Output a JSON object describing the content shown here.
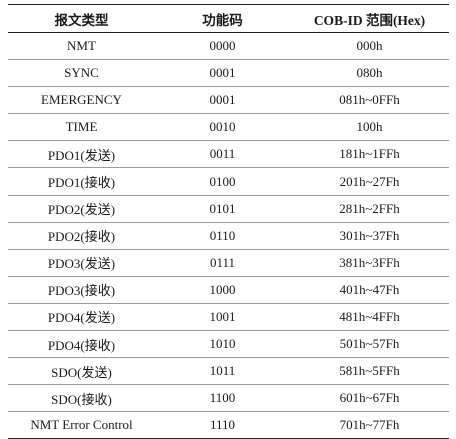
{
  "table": {
    "headers": [
      "报文类型",
      "功能码",
      "COB-ID 范围(Hex)"
    ],
    "rows": [
      [
        "NMT",
        "0000",
        "000h"
      ],
      [
        "SYNC",
        "0001",
        "080h"
      ],
      [
        "EMERGENCY",
        "0001",
        "081h~0FFh"
      ],
      [
        "TIME",
        "0010",
        "100h"
      ],
      [
        "PDO1(发送)",
        "0011",
        "181h~1FFh"
      ],
      [
        "PDO1(接收)",
        "0100",
        "201h~27Fh"
      ],
      [
        "PDO2(发送)",
        "0101",
        "281h~2FFh"
      ],
      [
        "PDO2(接收)",
        "0110",
        "301h~37Fh"
      ],
      [
        "PDO3(发送)",
        "0111",
        "381h~3FFh"
      ],
      [
        "PDO3(接收)",
        "1000",
        "401h~47Fh"
      ],
      [
        "PDO4(发送)",
        "1001",
        "481h~4FFh"
      ],
      [
        "PDO4(接收)",
        "1010",
        "501h~57Fh"
      ],
      [
        "SDO(发送)",
        "1011",
        "581h~5FFh"
      ],
      [
        "SDO(接收)",
        "1100",
        "601h~67Fh"
      ],
      [
        "NMT Error Control",
        "1110",
        "701h~77Fh"
      ]
    ]
  }
}
